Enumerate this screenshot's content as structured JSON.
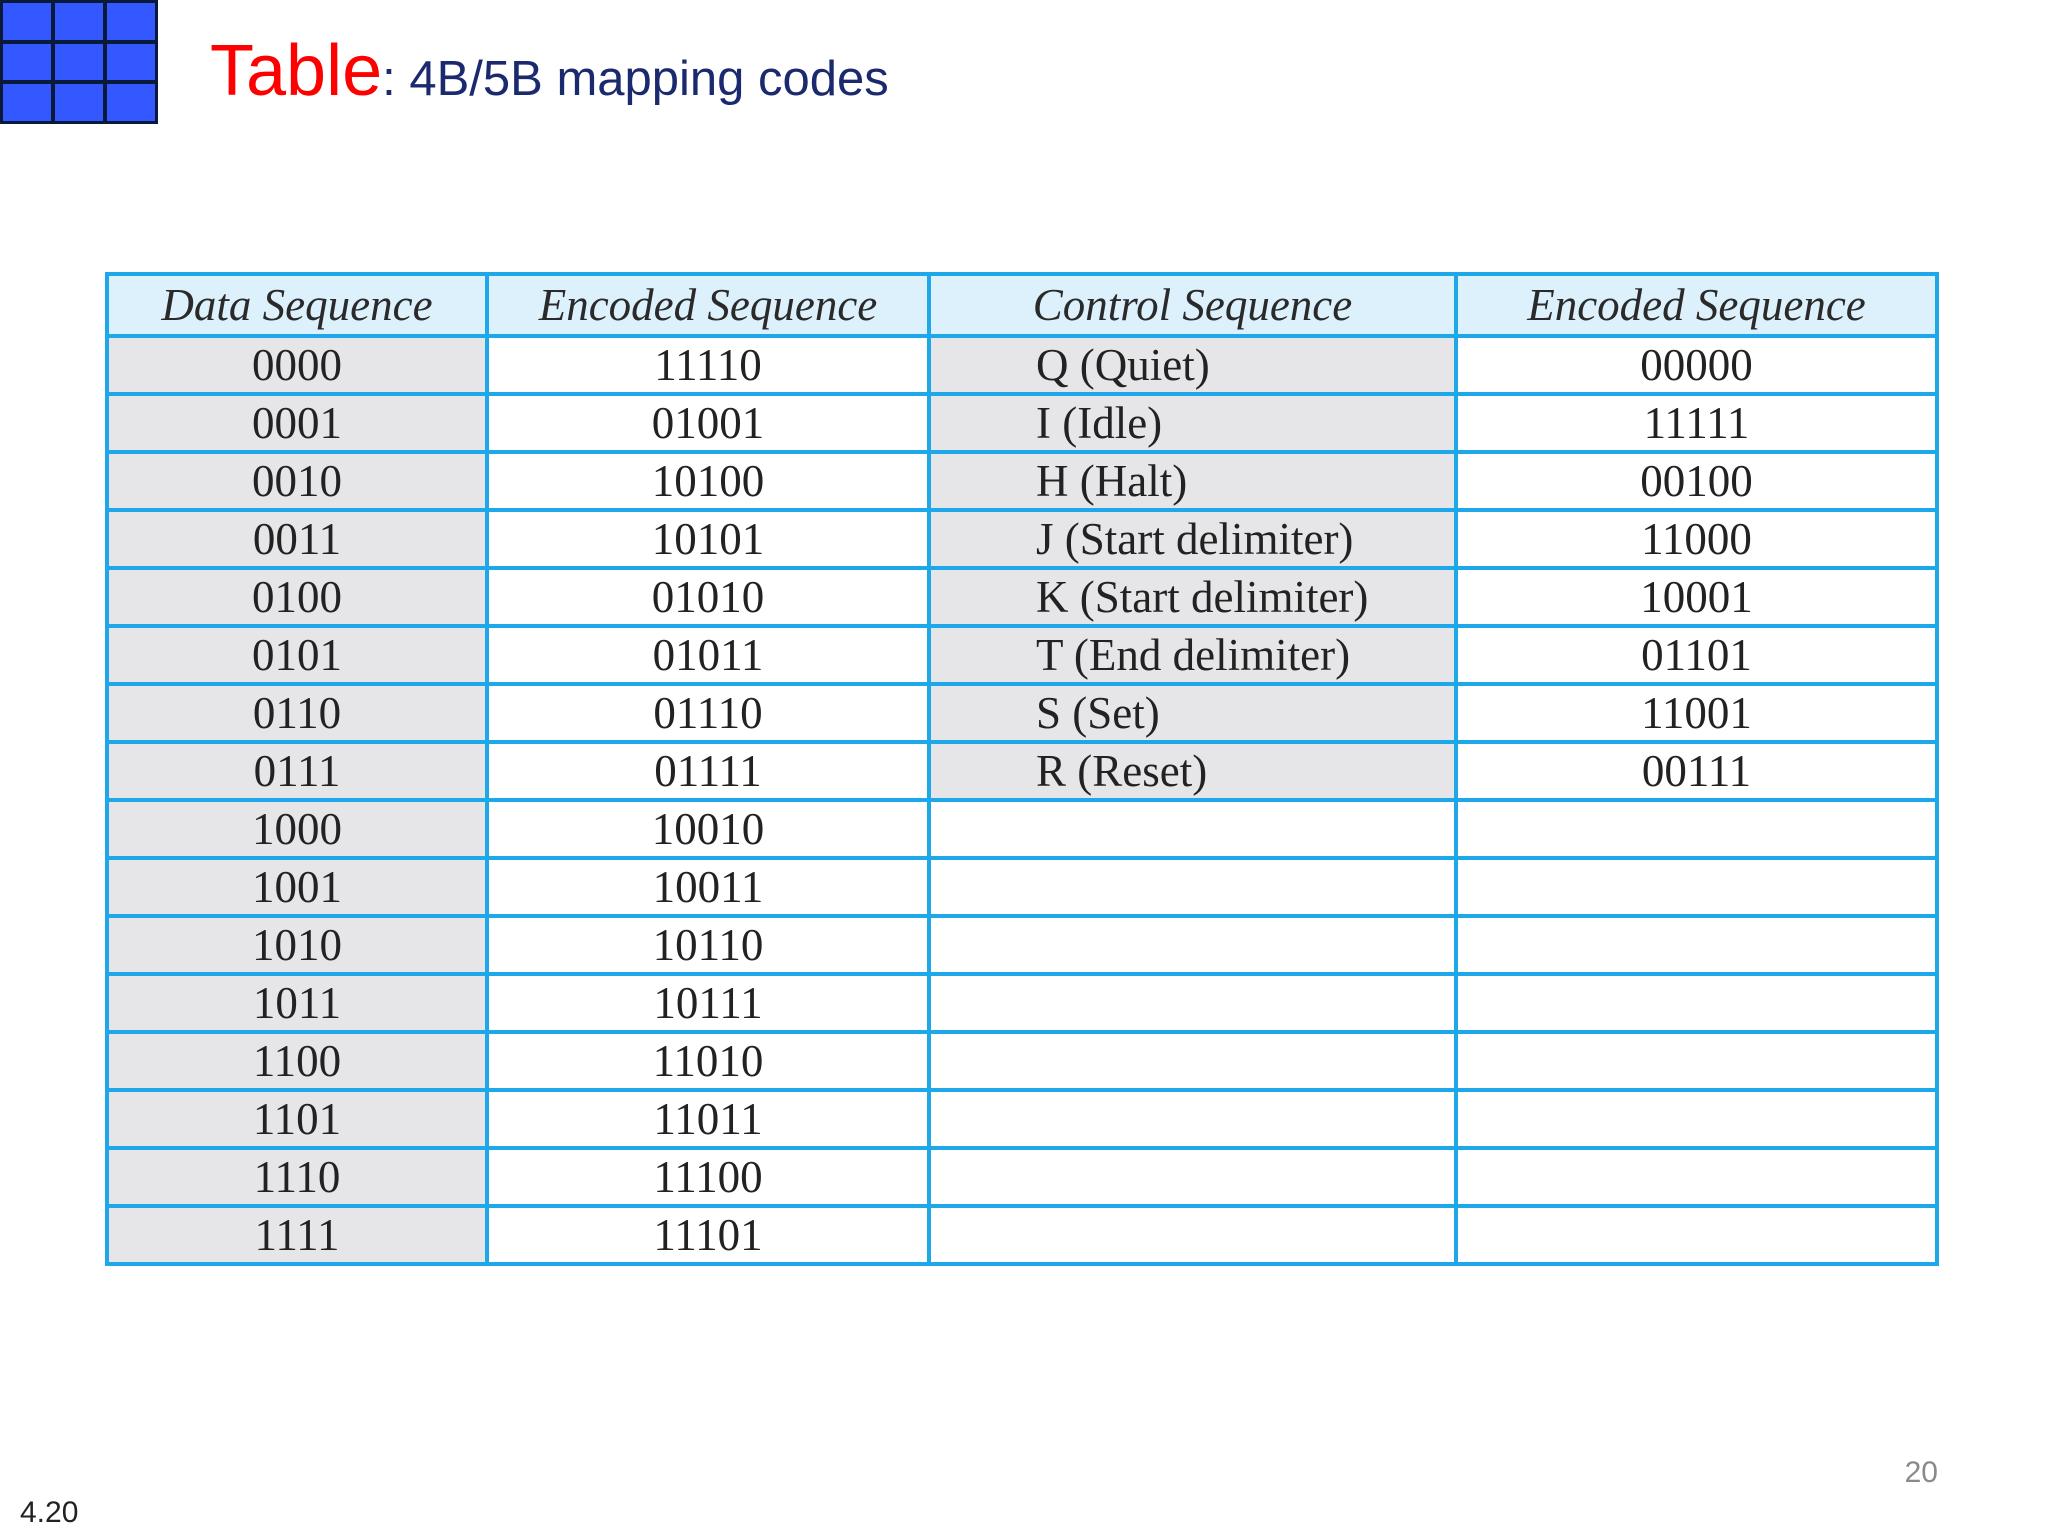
{
  "colors": {
    "accent_red": "#ff0000",
    "title_blue": "#1b2a6e",
    "border_blue": "#1ea8ea",
    "logo_blue": "#3358ff",
    "header_bg": "#ddf1fc",
    "cell_gray": "#e6e6e8"
  },
  "logo": {
    "icon": "grid-logo-icon"
  },
  "title": {
    "keyword": "Table",
    "rest": ": 4B/5B mapping codes"
  },
  "table": {
    "headers": [
      "Data Sequence",
      "Encoded Sequence",
      "Control Sequence",
      "Encoded Sequence"
    ],
    "data_rows": [
      {
        "data": "0000",
        "encoded": "11110"
      },
      {
        "data": "0001",
        "encoded": "01001"
      },
      {
        "data": "0010",
        "encoded": "10100"
      },
      {
        "data": "0011",
        "encoded": "10101"
      },
      {
        "data": "0100",
        "encoded": "01010"
      },
      {
        "data": "0101",
        "encoded": "01011"
      },
      {
        "data": "0110",
        "encoded": "01110"
      },
      {
        "data": "0111",
        "encoded": "01111"
      },
      {
        "data": "1000",
        "encoded": "10010"
      },
      {
        "data": "1001",
        "encoded": "10011"
      },
      {
        "data": "1010",
        "encoded": "10110"
      },
      {
        "data": "1011",
        "encoded": "10111"
      },
      {
        "data": "1100",
        "encoded": "11010"
      },
      {
        "data": "1101",
        "encoded": "11011"
      },
      {
        "data": "1110",
        "encoded": "11100"
      },
      {
        "data": "1111",
        "encoded": "11101"
      }
    ],
    "control_rows": [
      {
        "control": "Q (Quiet)",
        "encoded": "00000"
      },
      {
        "control": "I (Idle)",
        "encoded": "11111"
      },
      {
        "control": "H (Halt)",
        "encoded": "00100"
      },
      {
        "control": "J (Start delimiter)",
        "encoded": "11000"
      },
      {
        "control": "K (Start delimiter)",
        "encoded": "10001"
      },
      {
        "control": "T (End delimiter)",
        "encoded": "01101"
      },
      {
        "control": "S (Set)",
        "encoded": "11001"
      },
      {
        "control": "R (Reset)",
        "encoded": "00111"
      }
    ]
  },
  "footer": {
    "page_number": "20",
    "slide_number": "4.20"
  }
}
